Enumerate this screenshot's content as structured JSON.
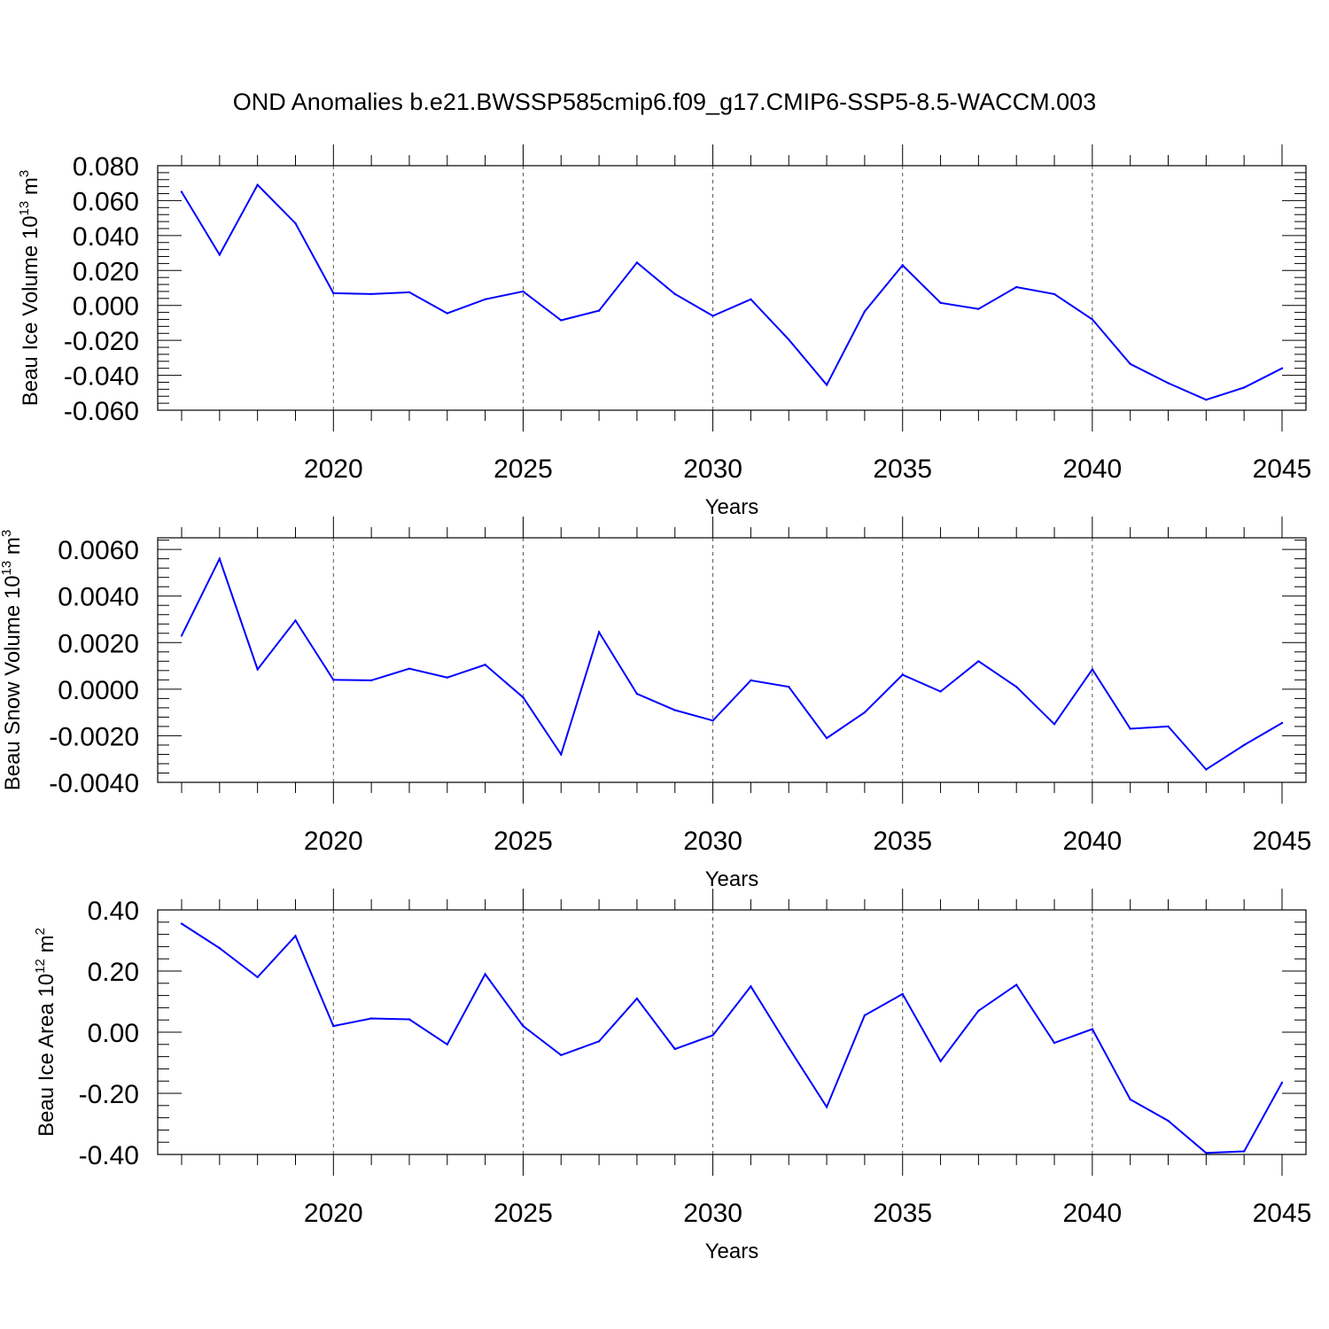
{
  "title": "OND Anomalies b.e21.BWSSP585cmip6.f09_g17.CMIP6-SSP5-8.5-WACCM.003",
  "colors": {
    "series": "#0000ff",
    "axis": "#000000"
  },
  "chart_data": [
    {
      "type": "line",
      "ylabel": {
        "text": "Beau Ice Volume 10",
        "sup": "13",
        "unit": " m",
        "unit_sup": "3"
      },
      "xlabel": "Years",
      "xlim": [
        2016,
        2045
      ],
      "ylim": [
        -0.06,
        0.08
      ],
      "yticks": [
        -0.06,
        -0.04,
        -0.02,
        0.0,
        0.02,
        0.04,
        0.06,
        0.08
      ],
      "yticklabels": [
        "-0.060",
        "-0.040",
        "-0.020",
        "0.000",
        "0.020",
        "0.040",
        "0.060",
        "0.080"
      ],
      "xticks": [
        2020,
        2025,
        2030,
        2035,
        2040,
        2045
      ],
      "xticklabels": [
        "2020",
        "2025",
        "2030",
        "2035",
        "2040",
        "2045"
      ],
      "x": [
        2016,
        2017,
        2018,
        2019,
        2020,
        2021,
        2022,
        2023,
        2024,
        2025,
        2026,
        2027,
        2028,
        2029,
        2030,
        2031,
        2032,
        2033,
        2034,
        2035,
        2036,
        2037,
        2038,
        2039,
        2040,
        2041,
        2042,
        2043,
        2044,
        2045
      ],
      "values": [
        0.065,
        0.029,
        0.069,
        0.047,
        0.007,
        0.0065,
        0.0075,
        -0.0045,
        0.0035,
        0.008,
        -0.0085,
        -0.003,
        0.0245,
        0.0065,
        -0.006,
        0.0035,
        -0.0195,
        -0.0455,
        -0.0035,
        0.023,
        0.0015,
        -0.002,
        0.0105,
        0.0065,
        -0.008,
        -0.0335,
        -0.0445,
        -0.054,
        -0.047,
        -0.036
      ]
    },
    {
      "type": "line",
      "ylabel": {
        "text": "Beau Snow Volume 10",
        "sup": "13",
        "unit": " m",
        "unit_sup": "3"
      },
      "xlabel": "Years",
      "xlim": [
        2016,
        2045
      ],
      "ylim": [
        -0.004,
        0.0065
      ],
      "yticks": [
        -0.004,
        -0.002,
        0.0,
        0.002,
        0.004,
        0.006
      ],
      "yticklabels": [
        "-0.0040",
        "-0.0020",
        "0.0000",
        "0.0020",
        "0.0040",
        "0.0060"
      ],
      "xticks": [
        2020,
        2025,
        2030,
        2035,
        2040,
        2045
      ],
      "xticklabels": [
        "2020",
        "2025",
        "2030",
        "2035",
        "2040",
        "2045"
      ],
      "x": [
        2016,
        2017,
        2018,
        2019,
        2020,
        2021,
        2022,
        2023,
        2024,
        2025,
        2026,
        2027,
        2028,
        2029,
        2030,
        2031,
        2032,
        2033,
        2034,
        2035,
        2036,
        2037,
        2038,
        2039,
        2040,
        2041,
        2042,
        2043,
        2044,
        2045
      ],
      "values": [
        0.0023,
        0.0056,
        0.00085,
        0.00295,
        0.0004,
        0.00038,
        0.00088,
        0.0005,
        0.00105,
        -0.00035,
        -0.0028,
        0.00245,
        -0.0002,
        -0.0009,
        -0.00135,
        0.00038,
        0.0001,
        -0.0021,
        -0.001,
        0.00062,
        -0.0001,
        0.0012,
        0.0001,
        -0.0015,
        0.00085,
        -0.0017,
        -0.0016,
        -0.00345,
        -0.0024,
        -0.00145
      ]
    },
    {
      "type": "line",
      "ylabel": {
        "text": "Beau Ice Area 10",
        "sup": "12",
        "unit": " m",
        "unit_sup": "2"
      },
      "xlabel": "Years",
      "xlim": [
        2016,
        2045
      ],
      "ylim": [
        -0.4,
        0.4
      ],
      "yticks": [
        -0.4,
        -0.2,
        0.0,
        0.2,
        0.4
      ],
      "yticklabels": [
        "-0.40",
        "-0.20",
        "0.00",
        "0.20",
        "0.40"
      ],
      "xticks": [
        2020,
        2025,
        2030,
        2035,
        2040,
        2045
      ],
      "xticklabels": [
        "2020",
        "2025",
        "2030",
        "2035",
        "2040",
        "2045"
      ],
      "x": [
        2016,
        2017,
        2018,
        2019,
        2020,
        2021,
        2022,
        2023,
        2024,
        2025,
        2026,
        2027,
        2028,
        2029,
        2030,
        2031,
        2032,
        2033,
        2034,
        2035,
        2036,
        2037,
        2038,
        2039,
        2040,
        2041,
        2042,
        2043,
        2044,
        2045
      ],
      "values": [
        0.355,
        0.275,
        0.18,
        0.315,
        0.02,
        0.045,
        0.042,
        -0.04,
        0.19,
        0.02,
        -0.075,
        -0.03,
        0.11,
        -0.055,
        -0.01,
        0.15,
        -0.05,
        -0.245,
        0.055,
        0.125,
        -0.095,
        0.07,
        0.155,
        -0.035,
        0.01,
        -0.22,
        -0.29,
        -0.395,
        -0.39,
        -0.165
      ]
    }
  ]
}
